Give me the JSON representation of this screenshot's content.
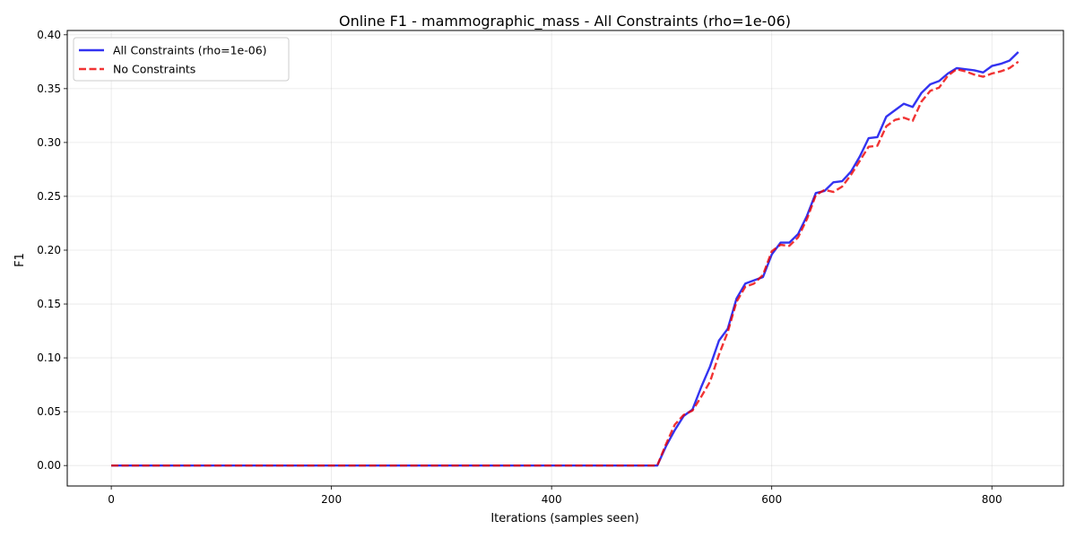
{
  "chart_data": {
    "type": "line",
    "title": "Online F1 - mammographic_mass - All Constraints (rho=1e-06)",
    "xlabel": "Iterations (samples seen)",
    "ylabel": "F1",
    "xlim": [
      -40,
      865
    ],
    "ylim": [
      -0.019,
      0.404
    ],
    "xticks": [
      0,
      200,
      400,
      600,
      800
    ],
    "xtick_labels": [
      "0",
      "200",
      "400",
      "600",
      "800"
    ],
    "yticks": [
      0.0,
      0.05,
      0.1,
      0.15,
      0.2,
      0.25,
      0.3,
      0.35,
      0.4
    ],
    "ytick_labels": [
      "0.00",
      "0.05",
      "0.10",
      "0.15",
      "0.20",
      "0.25",
      "0.30",
      "0.35",
      "0.40"
    ],
    "grid": true,
    "legend_position": "top-left",
    "series": [
      {
        "name": "All Constraints (rho=1e-06)",
        "color": "#0000ee",
        "style": "solid",
        "x": [
          0,
          100,
          200,
          300,
          400,
          490,
          496,
          504,
          512,
          520,
          528,
          536,
          544,
          552,
          560,
          568,
          576,
          584,
          592,
          600,
          608,
          616,
          624,
          632,
          640,
          648,
          656,
          664,
          672,
          680,
          688,
          696,
          704,
          712,
          720,
          728,
          736,
          744,
          752,
          760,
          768,
          776,
          784,
          792,
          800,
          808,
          816,
          824
        ],
        "y": [
          0.0,
          0.0,
          0.0,
          0.0,
          0.0,
          0.0,
          0.0,
          0.018,
          0.033,
          0.046,
          0.052,
          0.073,
          0.092,
          0.116,
          0.127,
          0.155,
          0.169,
          0.172,
          0.175,
          0.196,
          0.207,
          0.207,
          0.215,
          0.232,
          0.253,
          0.255,
          0.263,
          0.264,
          0.273,
          0.287,
          0.304,
          0.305,
          0.324,
          0.33,
          0.336,
          0.333,
          0.346,
          0.354,
          0.357,
          0.364,
          0.369,
          0.368,
          0.367,
          0.365,
          0.371,
          0.373,
          0.376,
          0.384
        ]
      },
      {
        "name": "No Constraints",
        "color": "#ee0000",
        "style": "dashed",
        "x": [
          0,
          100,
          200,
          300,
          400,
          490,
          496,
          504,
          512,
          520,
          528,
          536,
          544,
          552,
          560,
          568,
          576,
          584,
          592,
          600,
          608,
          616,
          624,
          632,
          640,
          648,
          656,
          664,
          672,
          680,
          688,
          696,
          704,
          712,
          720,
          728,
          736,
          744,
          752,
          760,
          768,
          776,
          784,
          792,
          800,
          808,
          816,
          824
        ],
        "y": [
          0.0,
          0.0,
          0.0,
          0.0,
          0.0,
          0.0,
          0.0,
          0.02,
          0.038,
          0.047,
          0.051,
          0.064,
          0.078,
          0.103,
          0.124,
          0.152,
          0.166,
          0.169,
          0.177,
          0.199,
          0.205,
          0.204,
          0.212,
          0.229,
          0.251,
          0.256,
          0.254,
          0.259,
          0.27,
          0.283,
          0.296,
          0.297,
          0.315,
          0.321,
          0.323,
          0.32,
          0.338,
          0.348,
          0.351,
          0.362,
          0.368,
          0.366,
          0.363,
          0.361,
          0.364,
          0.366,
          0.369,
          0.375
        ]
      }
    ]
  }
}
